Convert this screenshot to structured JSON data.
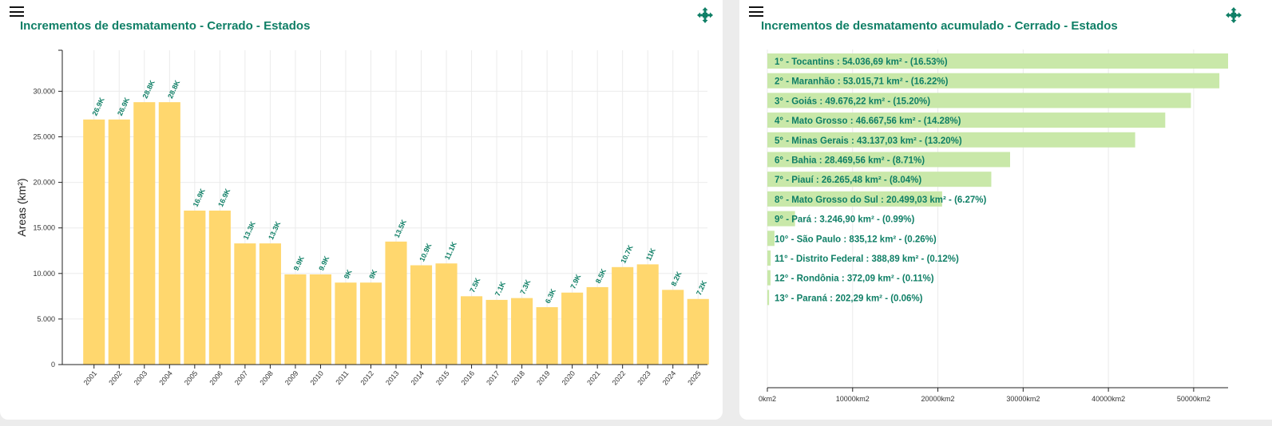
{
  "colors": {
    "accent": "#0f7f66",
    "bar_yellow": "#ffd76e",
    "bar_green": "#c9e8a9",
    "grid": "#ebebeb"
  },
  "left_panel": {
    "title": "Incrementos de desmatamento - Cerrado - Estados",
    "menu_icon": "hamburger-menu-icon",
    "expand_icon": "expand-arrows-icon"
  },
  "right_panel": {
    "title": "Incrementos de desmatamento acumulado - Cerrado - Estados",
    "menu_icon": "hamburger-menu-icon",
    "expand_icon": "expand-arrows-icon"
  },
  "chart_data": [
    {
      "type": "bar",
      "title": "Incrementos de desmatamento - Cerrado - Estados",
      "ylabel": "Areas (km²)",
      "xlabel": "",
      "ylim": [
        0,
        34500
      ],
      "grid": true,
      "yticks": [
        0,
        5000,
        10000,
        15000,
        20000,
        25000,
        30000
      ],
      "ytick_labels": [
        "0",
        "5.000",
        "10.000",
        "15.000",
        "20.000",
        "25.000",
        "30.000"
      ],
      "categories": [
        "2001",
        "2002",
        "2003",
        "2004",
        "2005",
        "2006",
        "2007",
        "2008",
        "2009",
        "2010",
        "2011",
        "2012",
        "2013",
        "2014",
        "2015",
        "2016",
        "2017",
        "2018",
        "2019",
        "2020",
        "2021",
        "2022",
        "2023",
        "2024",
        "2025"
      ],
      "values": [
        26900,
        26900,
        28800,
        28800,
        16900,
        16900,
        13300,
        13300,
        9900,
        9900,
        9000,
        9000,
        13500,
        10900,
        11100,
        7500,
        7100,
        7300,
        6300,
        7900,
        8500,
        10700,
        11000,
        8200,
        7200
      ],
      "data_labels": [
        "26.9K",
        "26.9K",
        "28.8K",
        "28.8K",
        "16.9K",
        "16.9K",
        "13.3K",
        "13.3K",
        "9.9K",
        "9.9K",
        "9K",
        "9K",
        "13.5K",
        "10.9K",
        "11.1K",
        "7.5K",
        "7.1K",
        "7.3K",
        "6.3K",
        "7.9K",
        "8.5K",
        "10.7K",
        "11K",
        "8.2K",
        "7.2K"
      ]
    },
    {
      "type": "bar",
      "orientation": "horizontal",
      "title": "Incrementos de desmatamento acumulado - Cerrado - Estados",
      "xlim": [
        0,
        54036.69
      ],
      "grid": true,
      "xticks": [
        0,
        10000,
        20000,
        30000,
        40000,
        50000
      ],
      "xtick_labels": [
        "0km2",
        "10000km2",
        "20000km2",
        "30000km2",
        "40000km2",
        "50000km2"
      ],
      "categories": [
        "Tocantins",
        "Maranhão",
        "Goiás",
        "Mato Grosso",
        "Minas Gerais",
        "Bahia",
        "Piauí",
        "Mato Grosso do Sul",
        "Pará",
        "São Paulo",
        "Distrito Federal",
        "Rondônia",
        "Paraná"
      ],
      "values": [
        54036.69,
        53015.71,
        49676.22,
        46667.56,
        43137.03,
        28469.56,
        26265.48,
        20499.03,
        3246.9,
        835.12,
        388.89,
        372.09,
        202.29
      ],
      "labels": [
        "1° - Tocantins : 54.036,69 km² - (16.53%)",
        "2° - Maranhão : 53.015,71 km² - (16.22%)",
        "3° - Goiás : 49.676,22 km² - (15.20%)",
        "4° - Mato Grosso : 46.667,56 km² - (14.28%)",
        "5° - Minas Gerais : 43.137,03 km² - (13.20%)",
        "6° - Bahia : 28.469,56 km² - (8.71%)",
        "7° - Piauí : 26.265,48 km² - (8.04%)",
        "8° - Mato Grosso do Sul : 20.499,03 km² - (6.27%)",
        "9° - Pará : 3.246,90 km² - (0.99%)",
        "10° - São Paulo : 835,12 km² - (0.26%)",
        "11° - Distrito Federal : 388,89 km² - (0.12%)",
        "12° - Rondônia : 372,09 km² - (0.11%)",
        "13° - Paraná : 202,29 km² - (0.06%)"
      ]
    }
  ]
}
